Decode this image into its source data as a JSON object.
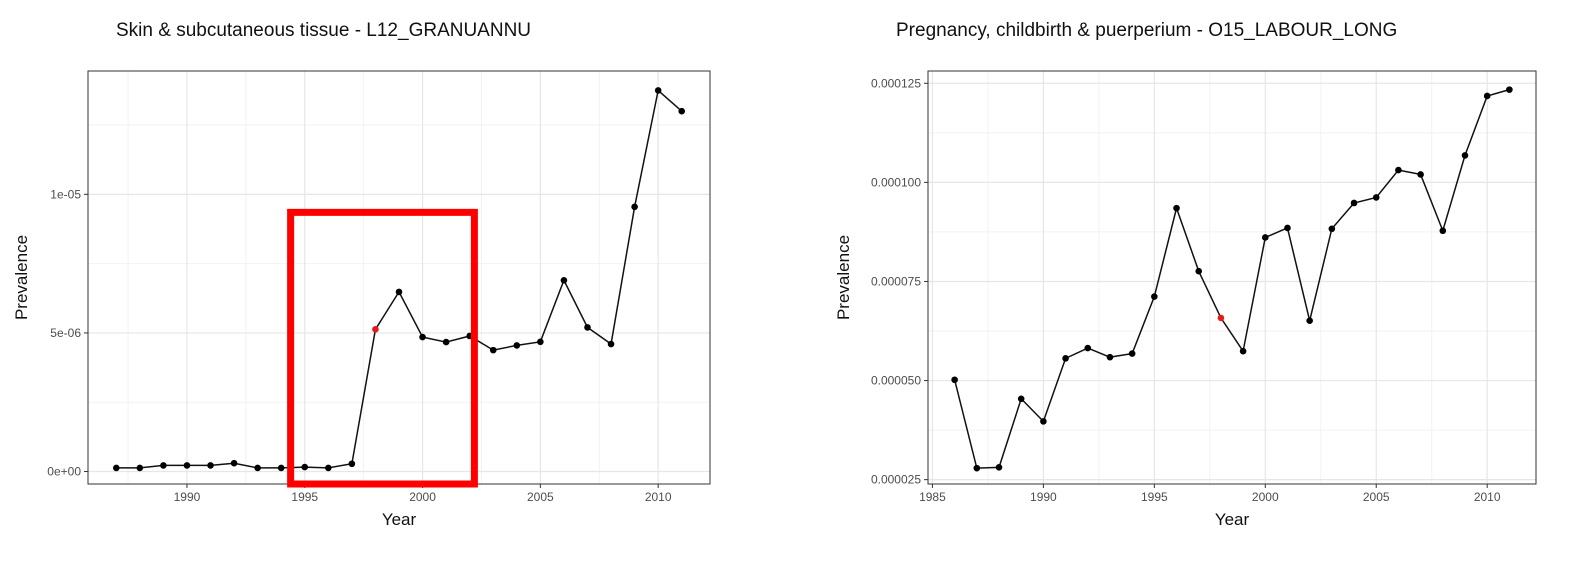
{
  "chart_data": [
    {
      "type": "line",
      "title": "Skin & subcutaneous tissue - L12_GRANUANNU",
      "xlabel": "Year",
      "ylabel": "Prevalence",
      "xlim": [
        1985.8,
        2012.2
      ],
      "ylim": [
        -4.5e-07,
        1.445e-05
      ],
      "x_ticks": [
        1990,
        1995,
        2000,
        2005,
        2010
      ],
      "x_tick_labels": [
        "1990",
        "1995",
        "2000",
        "2005",
        "2010"
      ],
      "y_ticks": [
        0,
        5e-06,
        1e-05
      ],
      "y_tick_labels": [
        "0e+00",
        "5e-06",
        "1e-05"
      ],
      "grid": true,
      "series": [
        {
          "x": [
            1987,
            1988,
            1989,
            1990,
            1991,
            1992,
            1993,
            1994,
            1995,
            1996,
            1997,
            1998,
            1999,
            2000,
            2001,
            2002,
            2003,
            2004,
            2005,
            2006,
            2007,
            2008,
            2009,
            2010,
            2011
          ],
          "y": [
            1.3e-07,
            1.3e-07,
            2.2e-07,
            2.2e-07,
            2.2e-07,
            3e-07,
            1.3e-07,
            1.3e-07,
            1.6e-07,
            1.3e-07,
            2.8e-07,
            5.13e-06,
            6.48e-06,
            4.85e-06,
            4.67e-06,
            4.89e-06,
            4.38e-06,
            4.55e-06,
            4.68e-06,
            6.9e-06,
            5.2e-06,
            4.6e-06,
            9.55e-06,
            1.375e-05,
            1.3e-05
          ]
        }
      ],
      "highlight_point": {
        "x": 1998,
        "y": 5.13e-06,
        "color": "#e41a1c"
      },
      "highlight_box": {
        "x_range": [
          1994.4,
          2002.2
        ],
        "y_range": [
          -4.5e-07,
          9.35e-06
        ],
        "color": "#ff0000"
      }
    },
    {
      "type": "line",
      "title": "Pregnancy, childbirth & puerperium - O15_LABOUR_LONG",
      "xlabel": "Year",
      "ylabel": "Prevalence",
      "xlim": [
        1984.8,
        2012.2
      ],
      "ylim": [
        2.39e-05,
        0.0001281
      ],
      "x_ticks": [
        1985,
        1990,
        1995,
        2000,
        2005,
        2010
      ],
      "x_tick_labels": [
        "1985",
        "1990",
        "1995",
        "2000",
        "2005",
        "2010"
      ],
      "y_ticks": [
        2.5e-05,
        5e-05,
        7.5e-05,
        0.0001,
        0.000125
      ],
      "y_tick_labels": [
        "0.000025",
        "0.000050",
        "0.000075",
        "0.000100",
        "0.000125"
      ],
      "grid": true,
      "series": [
        {
          "x": [
            1986,
            1987,
            1988,
            1989,
            1990,
            1991,
            1992,
            1993,
            1994,
            1995,
            1996,
            1997,
            1998,
            1999,
            2000,
            2001,
            2002,
            2003,
            2004,
            2005,
            2006,
            2007,
            2008,
            2009,
            2010,
            2011
          ],
          "y": [
            5.02e-05,
            2.79e-05,
            2.81e-05,
            4.54e-05,
            3.97e-05,
            5.56e-05,
            5.82e-05,
            5.59e-05,
            5.68e-05,
            7.12e-05,
            9.35e-05,
            7.76e-05,
            6.58e-05,
            5.74e-05,
            8.61e-05,
            8.85e-05,
            6.51e-05,
            8.83e-05,
            9.48e-05,
            9.62e-05,
            0.0001031,
            0.000102,
            8.78e-05,
            0.0001068,
            0.0001218,
            0.0001234
          ]
        }
      ],
      "highlight_point": {
        "x": 1998,
        "y": 6.58e-05,
        "color": "#e41a1c"
      }
    }
  ]
}
